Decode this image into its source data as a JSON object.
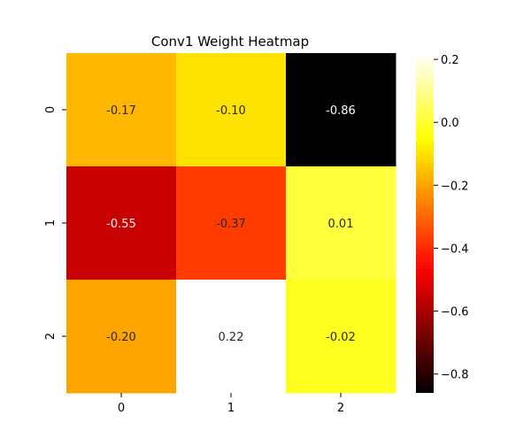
{
  "chart_data": {
    "type": "heatmap",
    "title": "Conv1 Weight Heatmap",
    "xlabel": "",
    "ylabel": "",
    "x_tick_labels": [
      "0",
      "1",
      "2"
    ],
    "y_tick_labels": [
      "0",
      "1",
      "2"
    ],
    "values": [
      [
        -0.17,
        -0.1,
        -0.86
      ],
      [
        -0.55,
        -0.37,
        0.01
      ],
      [
        -0.2,
        0.22,
        -0.02
      ]
    ],
    "cell_labels": [
      [
        "-0.17",
        "-0.10",
        "-0.86"
      ],
      [
        "-0.55",
        "-0.37",
        "0.01"
      ],
      [
        "-0.20",
        "0.22",
        "-0.02"
      ]
    ],
    "colormap": "hot",
    "vmin": -0.86,
    "vmax": 0.22,
    "colorbar": {
      "ticks": [
        0.2,
        0.0,
        -0.2,
        -0.4,
        -0.6,
        -0.8
      ],
      "tick_labels": [
        "0.2",
        "0.0",
        "−0.2",
        "−0.4",
        "−0.6",
        "−0.8"
      ]
    },
    "grid": false,
    "legend": "none"
  }
}
